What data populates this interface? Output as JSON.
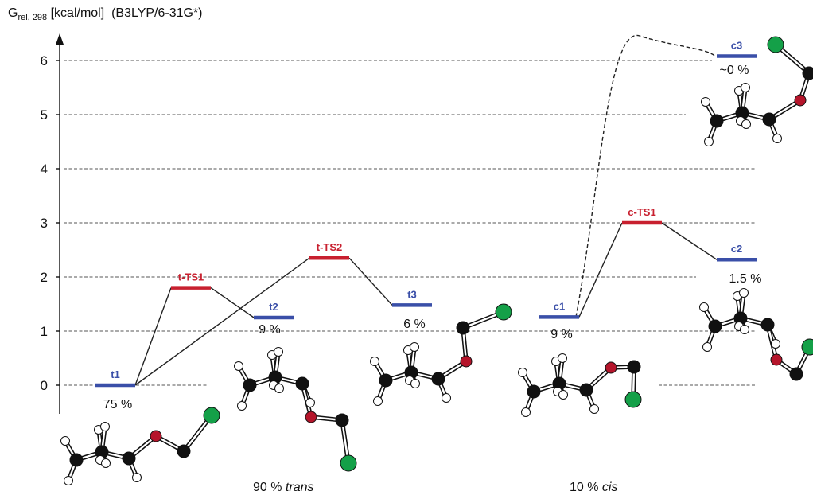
{
  "chart_data": {
    "type": "energy-level-diagram",
    "ylabel_main": "G",
    "ylabel_sub": "rel, 298",
    "ylabel_units": "[kcal/mol]",
    "ylabel_method": "(B3LYP/6-31G*)",
    "ylim": [
      0,
      6.5
    ],
    "yticks": [
      "0",
      "1",
      "2",
      "3",
      "4",
      "5",
      "6"
    ],
    "grid": "dashed-horizontal",
    "colors": {
      "minimum": "#3a4fa8",
      "transition_state": "#c8202f",
      "connector": "#222222",
      "grid": "#555555",
      "carbon": "#111111",
      "oxygen": "#b5152b",
      "chlorine": "#14a048",
      "hydrogen": "#ffffff"
    },
    "states": [
      {
        "id": "t1",
        "label": "t1",
        "kind": "minimum",
        "energy": 0.0,
        "population": "75 %"
      },
      {
        "id": "tTS1",
        "label": "t-TS1",
        "kind": "transition_state",
        "energy": 1.8,
        "population": ""
      },
      {
        "id": "t2",
        "label": "t2",
        "kind": "minimum",
        "energy": 1.25,
        "population": "9 %"
      },
      {
        "id": "tTS2",
        "label": "t-TS2",
        "kind": "transition_state",
        "energy": 2.35,
        "population": ""
      },
      {
        "id": "t3",
        "label": "t3",
        "kind": "minimum",
        "energy": 1.48,
        "population": "6 %"
      },
      {
        "id": "c1",
        "label": "c1",
        "kind": "minimum",
        "energy": 1.26,
        "population": "9 %"
      },
      {
        "id": "cTS1",
        "label": "c-TS1",
        "kind": "transition_state",
        "energy": 3.0,
        "population": ""
      },
      {
        "id": "c2",
        "label": "c2",
        "kind": "minimum",
        "energy": 2.32,
        "population": "1.5 %"
      },
      {
        "id": "c3",
        "label": "c3",
        "kind": "minimum",
        "energy": 6.08,
        "population": "~0 %"
      }
    ],
    "connections": [
      {
        "from": "t1",
        "to": "tTS1",
        "style": "solid"
      },
      {
        "from": "tTS1",
        "to": "t2",
        "style": "solid"
      },
      {
        "from": "t1",
        "to": "tTS2",
        "style": "solid"
      },
      {
        "from": "tTS2",
        "to": "t3",
        "style": "solid"
      },
      {
        "from": "c1",
        "to": "cTS1",
        "style": "solid"
      },
      {
        "from": "cTS1",
        "to": "c2",
        "style": "solid"
      },
      {
        "from": "c1",
        "to": "c3",
        "style": "dashed",
        "peak_energy": 6.5
      }
    ],
    "summary": [
      {
        "value": "90 %",
        "conformer": "trans"
      },
      {
        "value": "10 %",
        "conformer": "cis"
      }
    ]
  }
}
